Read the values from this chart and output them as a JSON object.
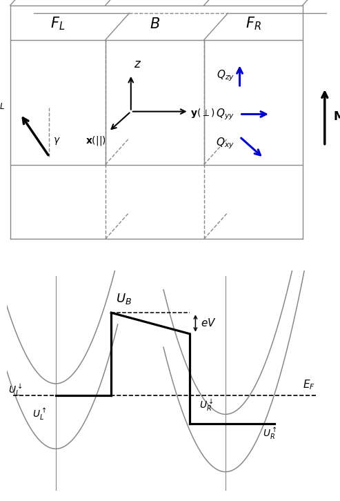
{
  "fig_width": 4.93,
  "fig_height": 7.26,
  "dpi": 100,
  "top": {
    "gray": "#888888",
    "blue": "#0000cc",
    "black": "#000000"
  },
  "bottom": {
    "black": "#000000",
    "gray": "#888888"
  }
}
